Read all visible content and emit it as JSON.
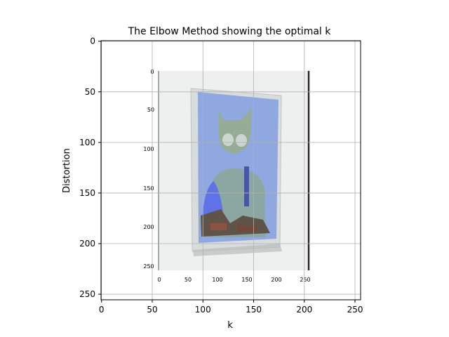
{
  "chart_data": {
    "type": "image",
    "title": "The Elbow Method showing the optimal k",
    "xlabel": "k",
    "ylabel": "Distortion",
    "xlim": [
      -0.5,
      255.5
    ],
    "ylim": [
      255.5,
      -0.5
    ],
    "y_inverted": true,
    "grid": true,
    "xticks": [
      0,
      50,
      100,
      150,
      200,
      250
    ],
    "yticks": [
      0,
      50,
      100,
      150,
      200,
      250
    ],
    "image_content": {
      "description_icon": "photo-of-tilted-poster-with-cat-head-figure",
      "inner_xticks": [
        0,
        50,
        100,
        150,
        200,
        250
      ],
      "inner_yticks": [
        0,
        50,
        100,
        150,
        200,
        250
      ]
    },
    "colors": {
      "poster_blue": "#8fa8e0",
      "poster_dark_blue": "#5a6ee8",
      "frame_gray": "#d8dcdc",
      "wall_light": "#eef0f0"
    }
  }
}
